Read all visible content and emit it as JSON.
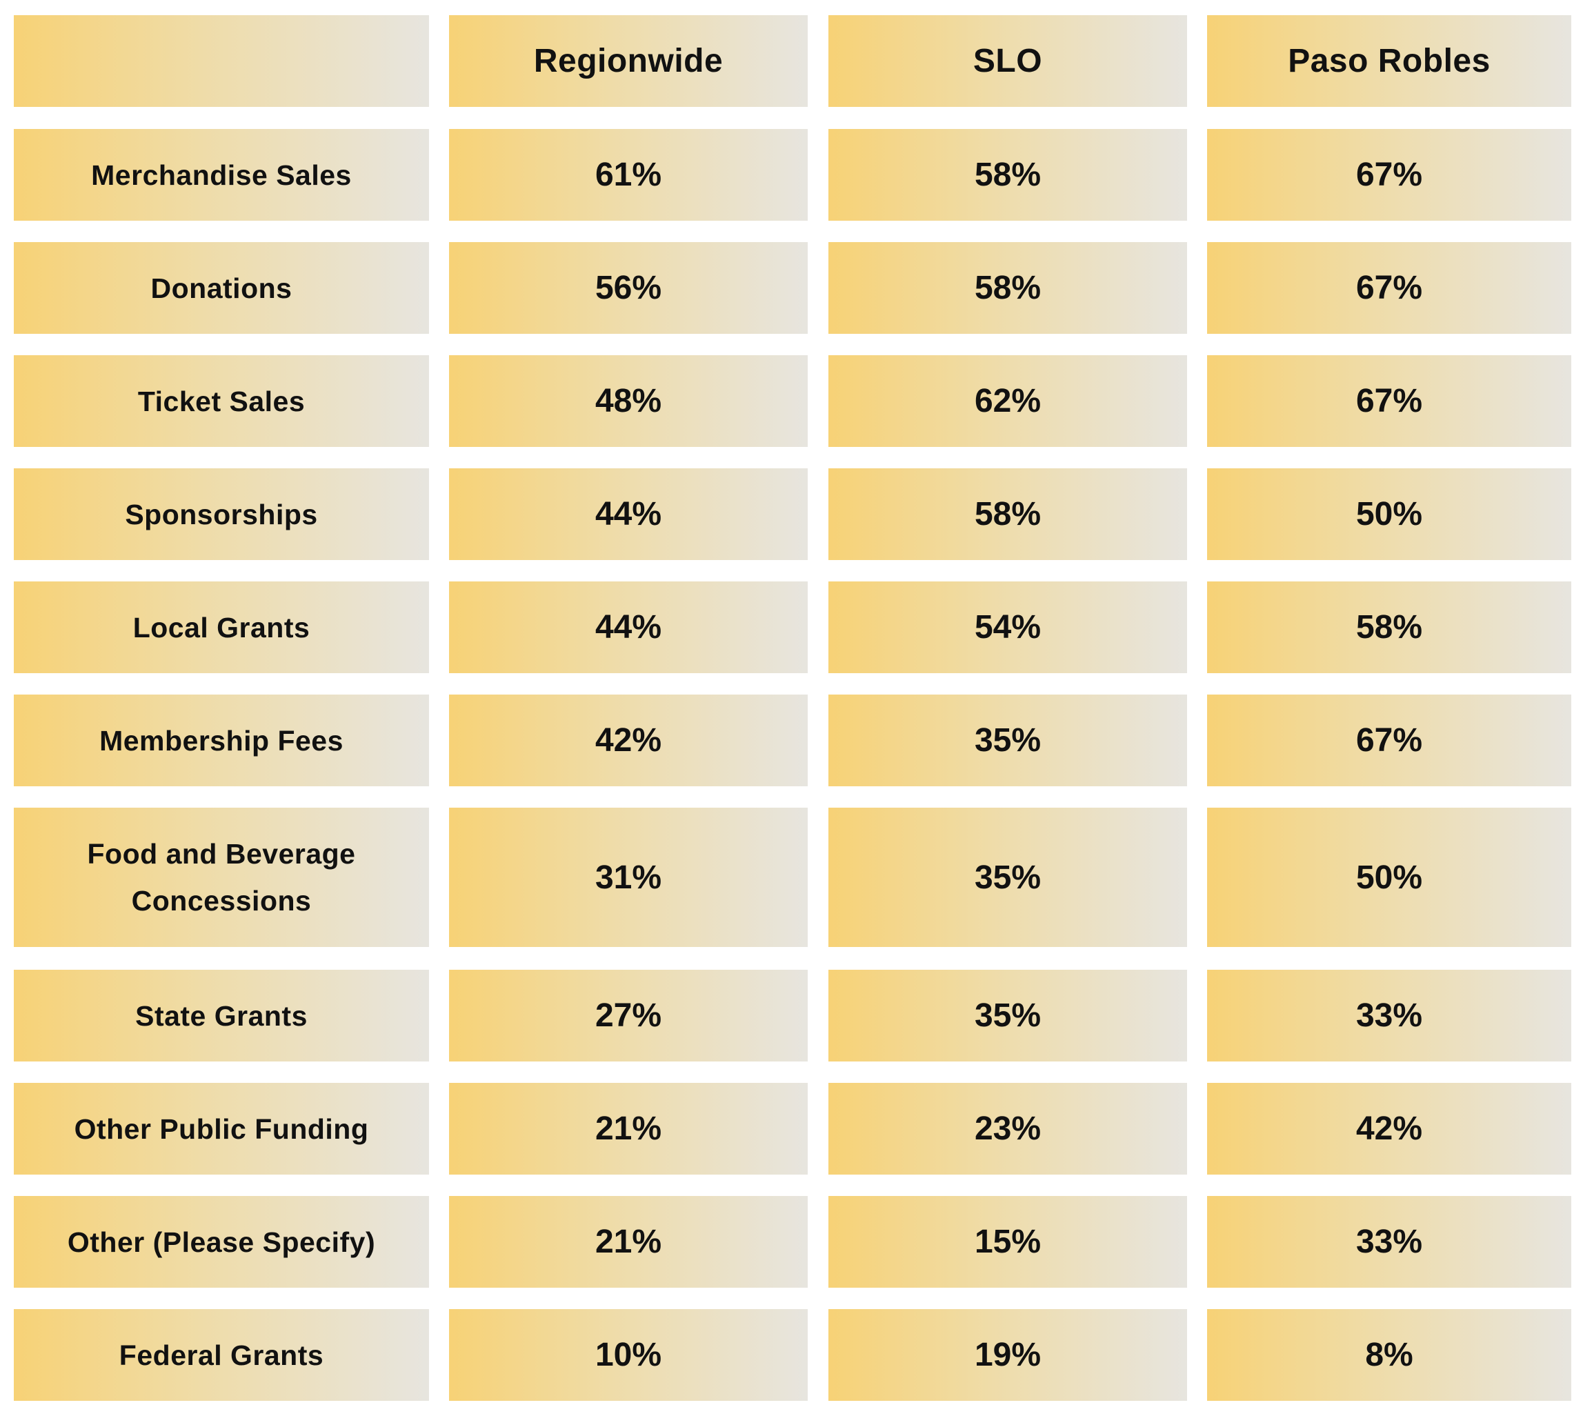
{
  "chart_data": {
    "type": "table",
    "columns": [
      "",
      "Regionwide",
      "SLO",
      "Paso Robles"
    ],
    "rows": [
      {
        "label": "Merchandise Sales",
        "values": [
          "61%",
          "58%",
          "67%"
        ]
      },
      {
        "label": "Donations",
        "values": [
          "56%",
          "58%",
          "67%"
        ]
      },
      {
        "label": "Ticket Sales",
        "values": [
          "48%",
          "62%",
          "67%"
        ]
      },
      {
        "label": "Sponsorships",
        "values": [
          "44%",
          "58%",
          "50%"
        ]
      },
      {
        "label": "Local Grants",
        "values": [
          "44%",
          "54%",
          "58%"
        ]
      },
      {
        "label": "Membership Fees",
        "values": [
          "42%",
          "35%",
          "67%"
        ]
      },
      {
        "label": "Food and Beverage Concessions",
        "values": [
          "31%",
          "35%",
          "50%"
        ]
      },
      {
        "label": "State Grants",
        "values": [
          "27%",
          "35%",
          "33%"
        ]
      },
      {
        "label": "Other Public Funding",
        "values": [
          "21%",
          "23%",
          "42%"
        ]
      },
      {
        "label": "Other (Please Specify)",
        "values": [
          "21%",
          "15%",
          "33%"
        ]
      },
      {
        "label": "Federal Grants",
        "values": [
          "10%",
          "19%",
          "8%"
        ]
      }
    ]
  }
}
